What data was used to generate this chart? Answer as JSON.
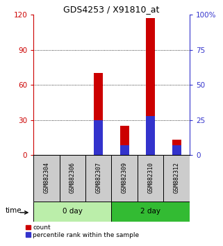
{
  "title": "GDS4253 / X91810_at",
  "samples": [
    "GSM882304",
    "GSM882306",
    "GSM882307",
    "GSM882309",
    "GSM882310",
    "GSM882312"
  ],
  "group_labels": [
    "0 day",
    "2 day"
  ],
  "red_values": [
    0,
    0,
    70,
    25,
    117,
    13
  ],
  "blue_values": [
    0,
    0,
    25,
    7,
    28,
    7
  ],
  "left_ylim": [
    0,
    120
  ],
  "right_ylim": [
    0,
    100
  ],
  "left_yticks": [
    0,
    30,
    60,
    90,
    120
  ],
  "right_yticks": [
    0,
    25,
    50,
    75,
    100
  ],
  "right_yticklabels": [
    "0",
    "25",
    "50",
    "75",
    "100%"
  ],
  "bar_color_red": "#cc0000",
  "bar_color_blue": "#3333cc",
  "left_tick_color": "#cc0000",
  "right_tick_color": "#3333cc",
  "sample_box_color": "#cccccc",
  "group_color_light": "#bbeeaa",
  "group_color_dark": "#33bb33",
  "legend_red": "count",
  "legend_blue": "percentile rank within the sample",
  "time_label": "time"
}
